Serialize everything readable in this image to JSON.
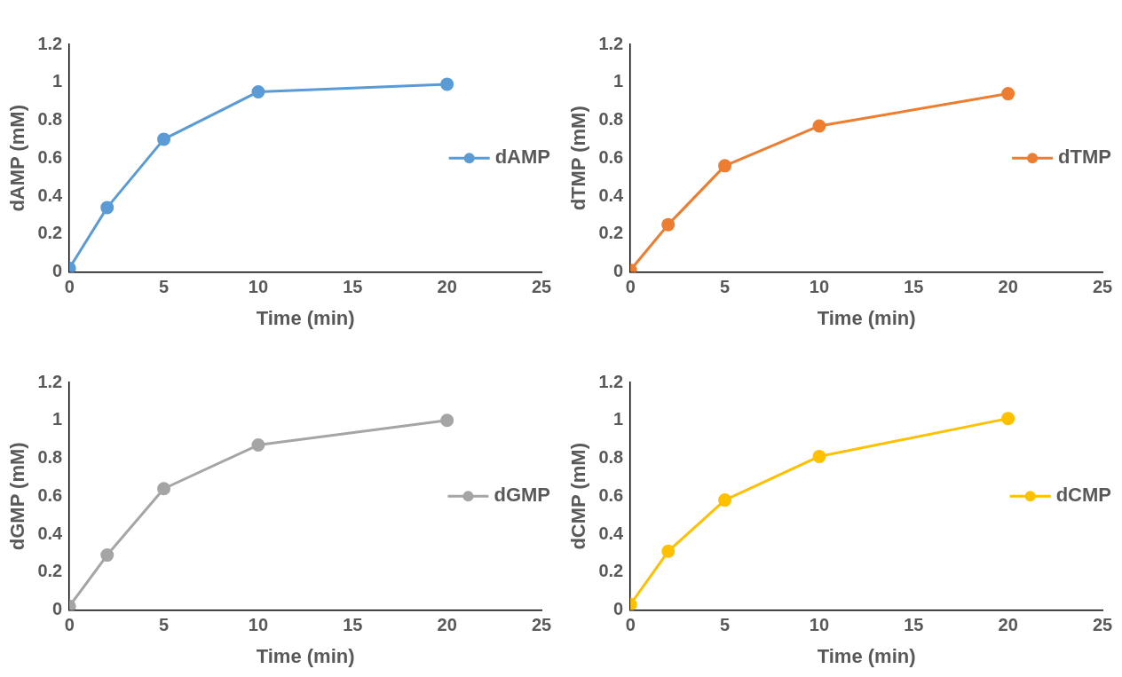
{
  "chart_data": [
    {
      "type": "line",
      "xlabel": "Time (min)",
      "ylabel": "dAMP (mM)",
      "x": [
        0,
        2,
        5,
        10,
        20
      ],
      "xlim": [
        0,
        25
      ],
      "xticks": [
        0,
        5,
        10,
        15,
        20,
        25
      ],
      "ylim": [
        0,
        1.2
      ],
      "yticks": [
        0,
        0.2,
        0.4,
        0.6,
        0.8,
        1,
        1.2
      ],
      "grid": false,
      "legend": "right",
      "marker": "circle",
      "series": [
        {
          "name": "dAMP",
          "color": "#5b9bd5",
          "values": [
            0.02,
            0.34,
            0.7,
            0.95,
            0.99
          ]
        }
      ]
    },
    {
      "type": "line",
      "xlabel": "Time (min)",
      "ylabel": "dTMP (mM)",
      "x": [
        0,
        2,
        5,
        10,
        20
      ],
      "xlim": [
        0,
        25
      ],
      "xticks": [
        0,
        5,
        10,
        15,
        20,
        25
      ],
      "ylim": [
        0,
        1.2
      ],
      "yticks": [
        0,
        0.2,
        0.4,
        0.6,
        0.8,
        1,
        1.2
      ],
      "grid": false,
      "legend": "right",
      "marker": "circle",
      "series": [
        {
          "name": "dTMP",
          "color": "#ed7d31",
          "values": [
            0.01,
            0.25,
            0.56,
            0.77,
            0.94
          ]
        }
      ]
    },
    {
      "type": "line",
      "xlabel": "Time (min)",
      "ylabel": "dGMP (mM)",
      "x": [
        0,
        2,
        5,
        10,
        20
      ],
      "xlim": [
        0,
        25
      ],
      "xticks": [
        0,
        5,
        10,
        15,
        20,
        25
      ],
      "ylim": [
        0,
        1.2
      ],
      "yticks": [
        0,
        0.2,
        0.4,
        0.6,
        0.8,
        1,
        1.2
      ],
      "grid": false,
      "legend": "right",
      "marker": "circle",
      "series": [
        {
          "name": "dGMP",
          "color": "#a5a5a5",
          "values": [
            0.02,
            0.29,
            0.64,
            0.87,
            1.0
          ]
        }
      ]
    },
    {
      "type": "line",
      "xlabel": "Time (min)",
      "ylabel": "dCMP (mM)",
      "x": [
        0,
        2,
        5,
        10,
        20
      ],
      "xlim": [
        0,
        25
      ],
      "xticks": [
        0,
        5,
        10,
        15,
        20,
        25
      ],
      "ylim": [
        0,
        1.2
      ],
      "yticks": [
        0,
        0.2,
        0.4,
        0.6,
        0.8,
        1,
        1.2
      ],
      "grid": false,
      "legend": "right",
      "marker": "circle",
      "series": [
        {
          "name": "dCMP",
          "color": "#ffc000",
          "values": [
            0.03,
            0.31,
            0.58,
            0.81,
            1.01
          ]
        }
      ]
    }
  ]
}
